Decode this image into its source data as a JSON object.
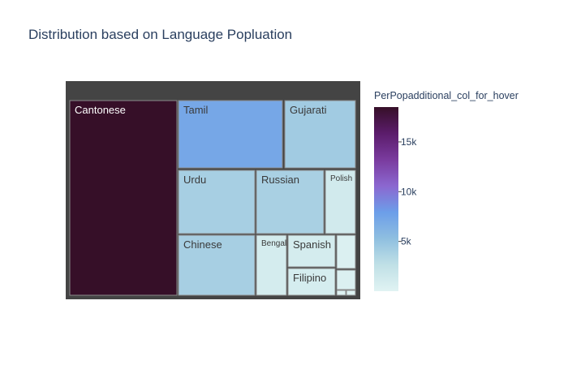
{
  "title": "Distribution based on Language Popluation",
  "chart_data": {
    "type": "treemap",
    "title": "Distribution based on Language Popluation",
    "color_metric": "PerPopadditional_col_for_hover",
    "colorbar": {
      "title": "PerPopadditional_col_for_hover",
      "range": [
        0,
        18500
      ],
      "ticks": [
        5000,
        10000,
        15000
      ],
      "tick_labels": [
        "5k",
        "10k",
        "15k"
      ],
      "colors": [
        "#e0f3f3",
        "#c0e0e6",
        "#8fbfe0",
        "#6c9ee9",
        "#8b67d0",
        "#7a3b9e",
        "#5b1c6b",
        "#360f28"
      ]
    },
    "nodes": [
      {
        "label": "Cantonese",
        "area": 130,
        "color_value": 18500
      },
      {
        "label": "Tamil",
        "area": 47,
        "color_value": 7200
      },
      {
        "label": "Gujarati",
        "area": 32,
        "color_value": 4300
      },
      {
        "label": "Urdu",
        "area": 34,
        "color_value": 4000
      },
      {
        "label": "Russian",
        "area": 30,
        "color_value": 3900
      },
      {
        "label": "Polish",
        "area": 12,
        "color_value": 1200
      },
      {
        "label": "Chinese",
        "area": 32,
        "color_value": 4000
      },
      {
        "label": "Bengali",
        "area": 10,
        "color_value": 1000
      },
      {
        "label": "Spanish",
        "area": 10,
        "color_value": 950
      },
      {
        "label": "Filipino",
        "area": 9,
        "color_value": 900
      },
      {
        "label": "",
        "area": 2,
        "color_value": 400
      },
      {
        "label": "",
        "area": 2,
        "color_value": 400
      },
      {
        "label": "",
        "area": 0.5,
        "color_value": 200
      },
      {
        "label": "",
        "area": 0.5,
        "color_value": 200
      }
    ]
  }
}
